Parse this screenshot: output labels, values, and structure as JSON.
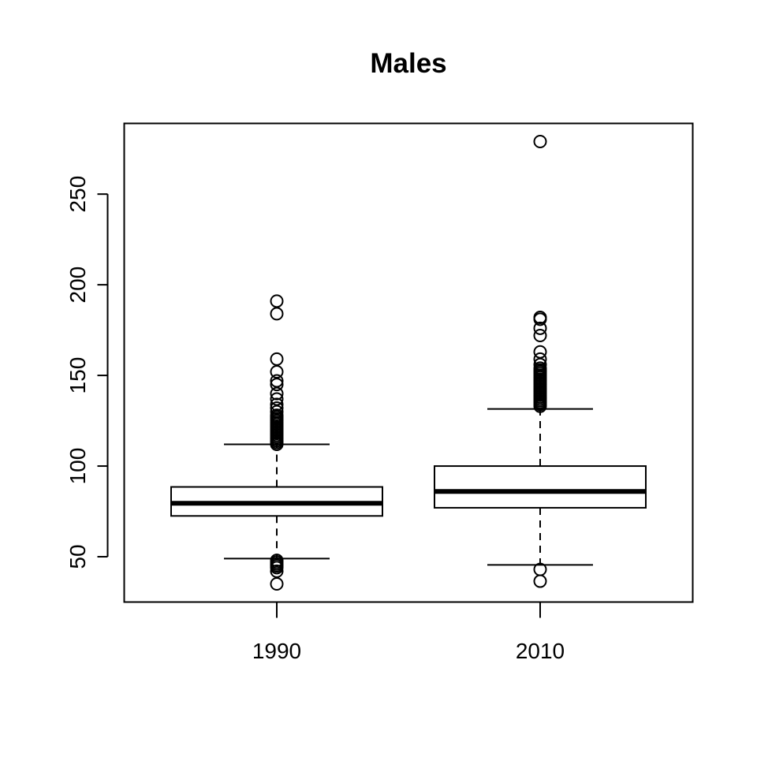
{
  "chart_data": {
    "type": "box",
    "title": "Males",
    "xlabel": "",
    "ylabel": "",
    "ylim": [
      25,
      289
    ],
    "y_ticks": [
      50,
      100,
      150,
      200,
      250
    ],
    "categories": [
      "1990",
      "2010"
    ],
    "boxes": [
      {
        "category": "1990",
        "whisker_low": 49,
        "q1": 72.5,
        "median": 79.5,
        "q3": 88.5,
        "whisker_high": 112,
        "outliers": [
          35,
          42,
          44,
          45,
          46,
          47,
          48,
          112,
          113,
          114,
          115,
          116,
          117,
          118,
          119,
          120,
          121,
          122,
          123,
          124,
          125,
          126,
          127,
          128,
          130,
          132,
          134,
          137,
          140,
          145,
          147,
          152,
          159,
          184,
          191
        ]
      },
      {
        "category": "2010",
        "whisker_low": 45.5,
        "q1": 77,
        "median": 86,
        "q3": 100,
        "whisker_high": 131.5,
        "outliers": [
          36.5,
          43,
          133,
          134,
          135,
          136,
          137,
          138,
          139,
          140,
          141,
          142,
          143,
          144,
          145,
          146,
          147,
          148,
          149,
          150,
          151,
          152,
          153,
          154,
          156,
          159,
          163,
          172,
          176,
          181,
          182,
          279
        ]
      }
    ],
    "grid": false,
    "legend": "none"
  }
}
